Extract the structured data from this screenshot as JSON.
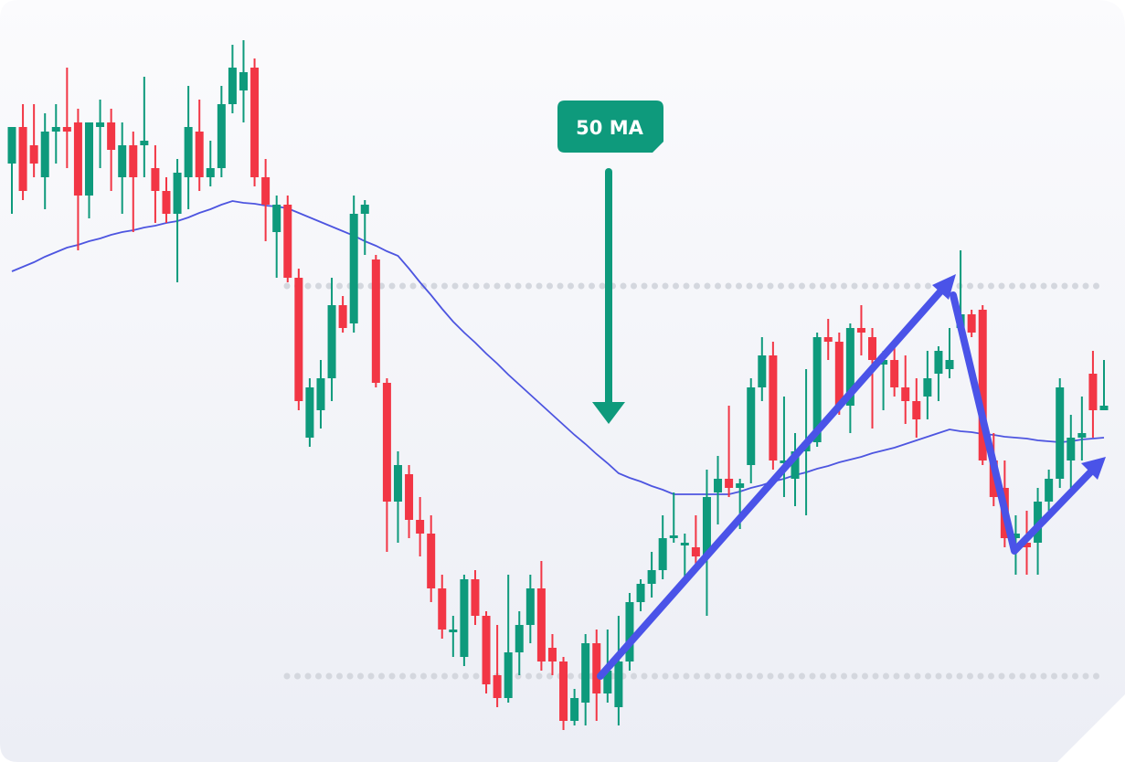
{
  "chart_data": {
    "type": "candlestick",
    "ylim": [
      0,
      834
    ],
    "up_color": "#0e9a7c",
    "down_color": "#f23645",
    "ma_color": "#4d55e0",
    "level_color": "#d4d7de",
    "levels": [
      521,
      94
    ],
    "annotation": "50 MA",
    "annotation_color": "#0e9a7c",
    "open": [
      655,
      695,
      675,
      640,
      690,
      695,
      700,
      620,
      695,
      700,
      640,
      675,
      675,
      650,
      625,
      600,
      640,
      690,
      640,
      650,
      720,
      735,
      760,
      640,
      580,
      610,
      530,
      355,
      385,
      420,
      500,
      480,
      600,
      550,
      415,
      285,
      315,
      265,
      250,
      190,
      145,
      115,
      200,
      160,
      95,
      70,
      120,
      150,
      190,
      125,
      110,
      45,
      65,
      130,
      75,
      60,
      110,
      175,
      195,
      210,
      245,
      240,
      235,
      225,
      295,
      310,
      300,
      325,
      410,
      445,
      330,
      310,
      340,
      350,
      465,
      460,
      390,
      475,
      465,
      435,
      440,
      410,
      395,
      400,
      425,
      430,
      475,
      490,
      495,
      330,
      300,
      245,
      240,
      240,
      285,
      310,
      330,
      355,
      425,
      385
    ],
    "high": [
      695,
      720,
      720,
      710,
      720,
      760,
      715,
      700,
      725,
      715,
      700,
      690,
      750,
      675,
      640,
      660,
      740,
      725,
      680,
      740,
      785,
      790,
      770,
      660,
      620,
      620,
      540,
      420,
      440,
      530,
      510,
      620,
      615,
      555,
      420,
      340,
      325,
      290,
      270,
      205,
      160,
      205,
      210,
      165,
      150,
      205,
      165,
      205,
      220,
      140,
      115,
      80,
      140,
      145,
      145,
      160,
      185,
      200,
      230,
      270,
      295,
      250,
      270,
      320,
      335,
      390,
      310,
      420,
      465,
      460,
      400,
      360,
      430,
      470,
      485,
      470,
      480,
      500,
      475,
      450,
      455,
      445,
      420,
      450,
      455,
      475,
      560,
      495,
      500,
      360,
      330,
      270,
      275,
      300,
      320,
      420,
      380,
      400,
      450,
      440
    ],
    "low": [
      600,
      615,
      640,
      605,
      655,
      650,
      560,
      595,
      650,
      625,
      600,
      580,
      640,
      590,
      590,
      525,
      605,
      625,
      630,
      640,
      710,
      700,
      630,
      570,
      530,
      525,
      385,
      345,
      365,
      395,
      470,
      470,
      555,
      410,
      230,
      240,
      245,
      225,
      175,
      135,
      115,
      105,
      150,
      75,
      60,
      65,
      95,
      130,
      100,
      95,
      35,
      40,
      40,
      45,
      65,
      40,
      100,
      165,
      180,
      200,
      240,
      200,
      210,
      160,
      260,
      290,
      255,
      305,
      395,
      320,
      290,
      280,
      270,
      345,
      440,
      380,
      360,
      445,
      365,
      385,
      400,
      370,
      355,
      375,
      395,
      420,
      475,
      465,
      325,
      280,
      235,
      205,
      205,
      205,
      275,
      300,
      300,
      330,
      355,
      385
    ],
    "close": [
      695,
      625,
      655,
      690,
      695,
      690,
      620,
      700,
      700,
      670,
      675,
      640,
      680,
      625,
      600,
      645,
      695,
      640,
      650,
      720,
      760,
      755,
      640,
      610,
      610,
      530,
      395,
      410,
      420,
      500,
      475,
      600,
      610,
      415,
      285,
      325,
      265,
      250,
      190,
      145,
      145,
      200,
      160,
      85,
      70,
      120,
      150,
      190,
      110,
      110,
      45,
      70,
      130,
      75,
      100,
      110,
      175,
      195,
      210,
      245,
      248,
      240,
      225,
      290,
      310,
      300,
      305,
      410,
      445,
      330,
      330,
      340,
      350,
      465,
      460,
      390,
      475,
      470,
      440,
      440,
      410,
      395,
      375,
      420,
      450,
      440,
      490,
      470,
      330,
      290,
      245,
      250,
      235,
      285,
      310,
      410,
      355,
      360,
      385,
      390
    ],
    "ma_values": [
      537,
      542,
      547,
      553,
      558,
      563,
      566,
      570,
      573,
      577,
      580,
      582,
      585,
      587,
      590,
      592,
      596,
      601,
      605,
      610,
      614,
      612,
      611,
      609,
      608,
      606,
      601,
      596,
      591,
      586,
      581,
      576,
      570,
      565,
      559,
      554,
      540,
      525,
      511,
      496,
      482,
      470,
      459,
      447,
      436,
      424,
      413,
      402,
      391,
      380,
      369,
      358,
      348,
      337,
      327,
      316,
      311,
      307,
      302,
      298,
      293,
      293,
      293,
      293,
      293,
      293,
      296,
      300,
      303,
      307,
      310,
      314,
      317,
      321,
      324,
      328,
      331,
      334,
      338,
      341,
      344,
      348,
      352,
      356,
      360,
      364,
      362,
      361,
      359,
      358,
      356,
      355,
      354,
      352,
      351,
      350,
      351,
      353,
      354,
      355
    ]
  }
}
